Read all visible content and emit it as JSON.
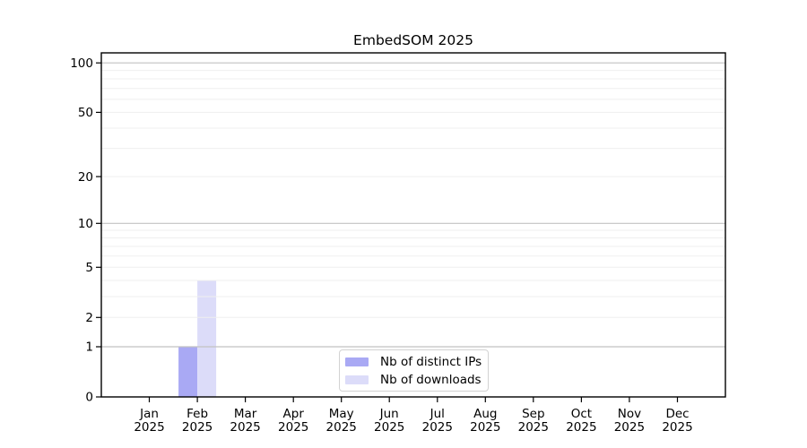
{
  "chart_data": {
    "type": "bar",
    "title": "EmbedSOM 2025",
    "categories": [
      "Jan",
      "Feb",
      "Mar",
      "Apr",
      "May",
      "Jun",
      "Jul",
      "Aug",
      "Sep",
      "Oct",
      "Nov",
      "Dec"
    ],
    "year": "2025",
    "series": [
      {
        "name": "Nb of distinct IPs",
        "color": "#a9a9f4",
        "values": [
          0,
          1,
          0,
          0,
          0,
          0,
          0,
          0,
          0,
          0,
          0,
          0
        ]
      },
      {
        "name": "Nb of downloads",
        "color": "#dcdcf9",
        "values": [
          0,
          4,
          0,
          0,
          0,
          0,
          0,
          0,
          0,
          0,
          0,
          0
        ]
      }
    ],
    "xlabel": "",
    "ylabel": "",
    "yscale": "log1p",
    "ylim": [
      0,
      115
    ],
    "yticks": [
      0,
      1,
      2,
      5,
      10,
      20,
      50,
      100
    ],
    "minor_gridlines": [
      3,
      4,
      6,
      7,
      8,
      9,
      30,
      40,
      60,
      70,
      80,
      90
    ],
    "emphasized_gridlines": [
      1,
      10,
      100
    ],
    "grid": true,
    "legend_position": "bottom-center"
  },
  "colors": {
    "background": "#ffffff",
    "axis": "#000000",
    "text": "#000000",
    "grid_minor": "#efefef",
    "grid_major": "#c2c2c2",
    "legend_border": "#d2d2d2"
  }
}
